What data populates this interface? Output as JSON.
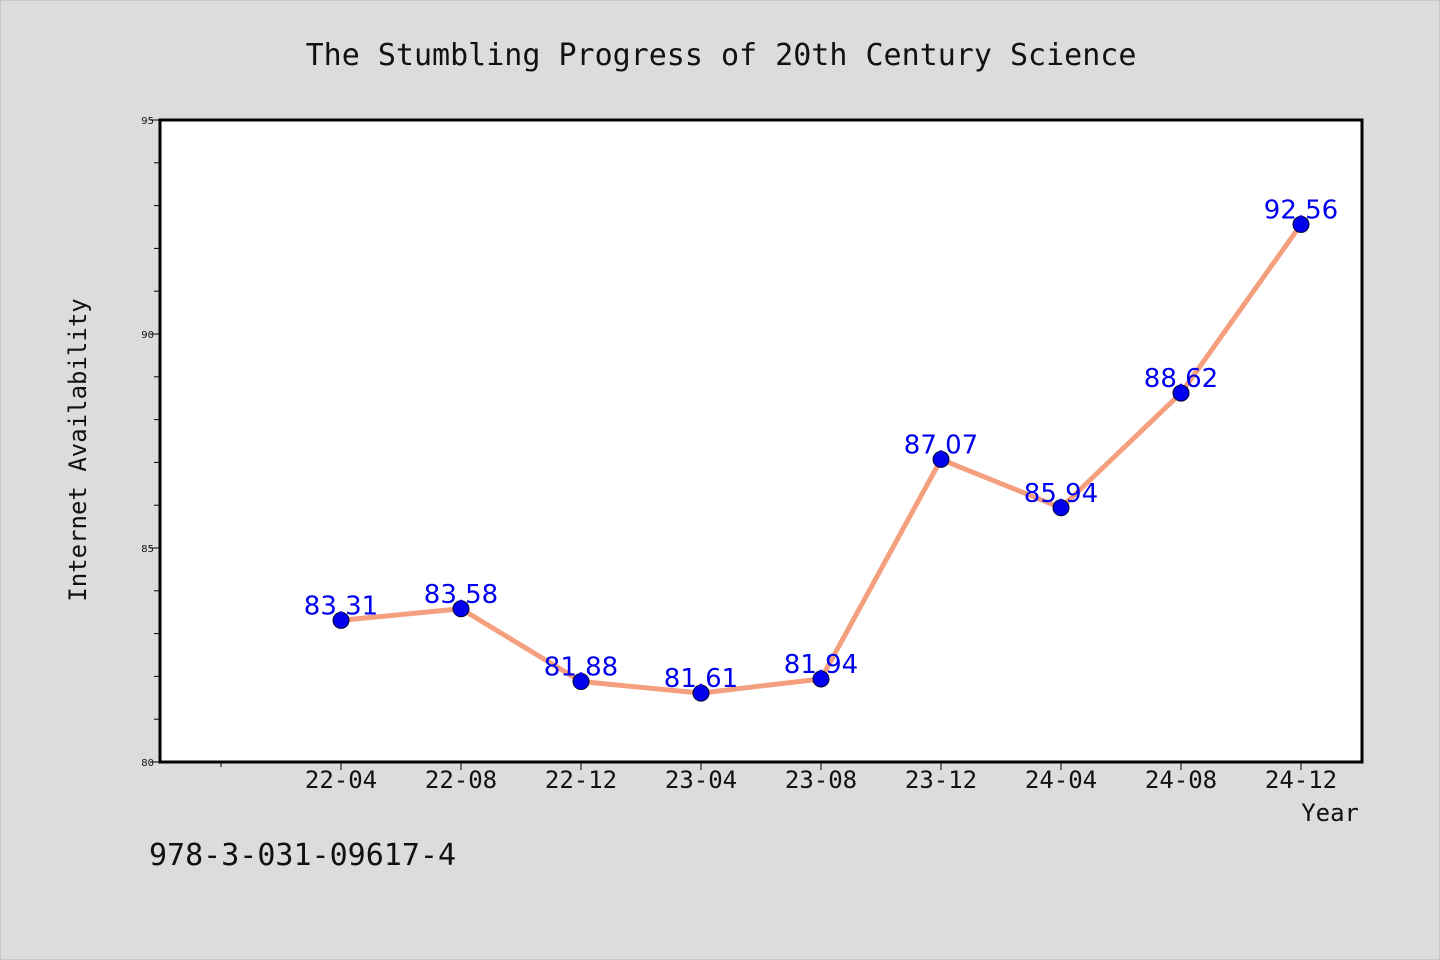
{
  "chart_data": {
    "type": "line",
    "title": "The Stumbling Progress of 20th Century Science",
    "xlabel": "Year",
    "ylabel": "Internet Availability",
    "categories": [
      "22-04",
      "22-08",
      "22-12",
      "23-04",
      "23-08",
      "23-12",
      "24-04",
      "24-08",
      "24-12"
    ],
    "series": [
      {
        "values": [
          83.31,
          83.58,
          81.88,
          81.61,
          81.94,
          87.07,
          85.94,
          88.62,
          92.56
        ],
        "value_labels": [
          "83.31",
          "83.58",
          "81.88",
          "81.61",
          "81.94",
          "87.07",
          "85.94",
          "88.62",
          "92.56"
        ]
      }
    ],
    "ylim": [
      80,
      95
    ],
    "yticks": [
      "80",
      "85",
      "90",
      "95"
    ],
    "grid": false,
    "legend": "none",
    "colors": {
      "line": "#f4a07e",
      "marker": "#0000ee",
      "data_label": "#0000ee",
      "plot_background": "#ffffff",
      "figure_background": "#dcdcdc"
    }
  },
  "footer": {
    "isbn": "978-3-031-09617-4"
  }
}
